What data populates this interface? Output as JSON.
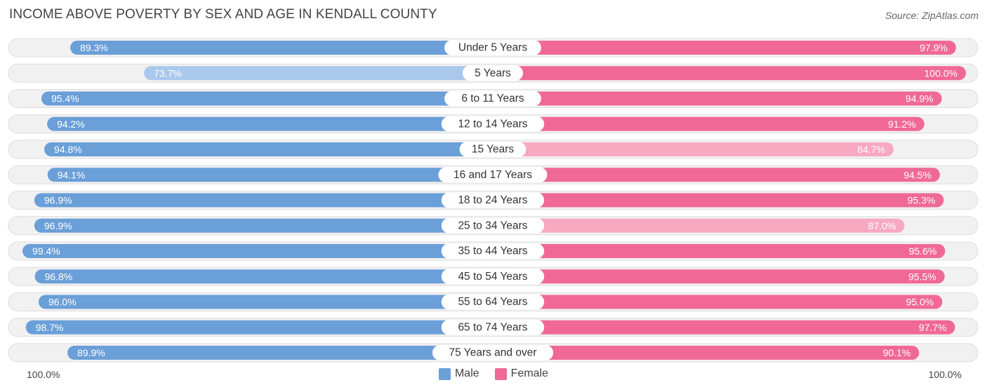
{
  "title": "INCOME ABOVE POVERTY BY SEX AND AGE IN KENDALL COUNTY",
  "source": "Source: ZipAtlas.com",
  "axis": {
    "left_label": "100.0%",
    "right_label": "100.0%"
  },
  "legend": {
    "male_label": "Male",
    "female_label": "Female"
  },
  "colors": {
    "male_strong": "#6a9fd8",
    "male_light": "#a9c8ec",
    "female_strong": "#f06896",
    "female_light": "#f7a9c2",
    "row_bg": "#f1f1f1",
    "row_border": "#dedede"
  },
  "chart_data": {
    "type": "bar",
    "orientation": "horizontal-diverging",
    "title": "INCOME ABOVE POVERTY BY SEX AND AGE IN KENDALL COUNTY",
    "xlim": [
      0,
      100
    ],
    "categories": [
      "Under 5 Years",
      "5 Years",
      "6 to 11 Years",
      "12 to 14 Years",
      "15 Years",
      "16 and 17 Years",
      "18 to 24 Years",
      "25 to 34 Years",
      "35 to 44 Years",
      "45 to 54 Years",
      "55 to 64 Years",
      "65 to 74 Years",
      "75 Years and over"
    ],
    "series": [
      {
        "name": "Male",
        "values": [
          89.3,
          73.7,
          95.4,
          94.2,
          94.8,
          94.1,
          96.9,
          96.9,
          99.4,
          96.8,
          96.0,
          98.7,
          89.9
        ],
        "labels": [
          "89.3%",
          "73.7%",
          "95.4%",
          "94.2%",
          "94.8%",
          "94.1%",
          "96.9%",
          "96.9%",
          "99.4%",
          "96.8%",
          "96.0%",
          "98.7%",
          "89.9%"
        ]
      },
      {
        "name": "Female",
        "values": [
          97.9,
          100.0,
          94.9,
          91.2,
          84.7,
          94.5,
          95.3,
          87.0,
          95.6,
          95.5,
          95.0,
          97.7,
          90.1
        ],
        "labels": [
          "97.9%",
          "100.0%",
          "94.9%",
          "91.2%",
          "84.7%",
          "94.5%",
          "95.3%",
          "87.0%",
          "95.6%",
          "95.5%",
          "95.0%",
          "97.7%",
          "90.1%"
        ]
      }
    ]
  }
}
